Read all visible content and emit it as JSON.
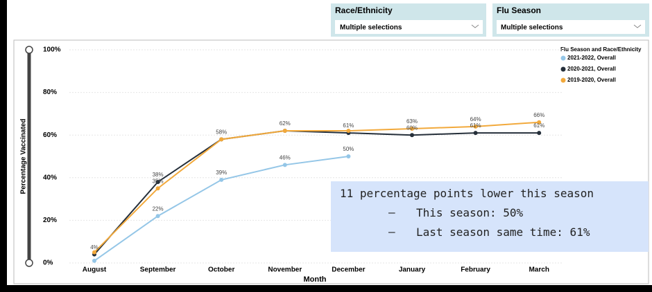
{
  "filters": [
    {
      "label": "Race/Ethnicity",
      "value": "Multiple selections"
    },
    {
      "label": "Flu Season",
      "value": "Multiple selections"
    }
  ],
  "chart_data": {
    "type": "line",
    "xlabel": "Month",
    "ylabel": "Percentage Vaccinated",
    "legend_title": "Flu Season and Race/Ethnicity",
    "legend": "top-right",
    "grid": true,
    "categories": [
      "August",
      "September",
      "October",
      "November",
      "December",
      "January",
      "February",
      "March"
    ],
    "ylim": [
      0,
      100
    ],
    "yticks": [
      {
        "value": 0,
        "label": "0%"
      },
      {
        "value": 20,
        "label": "20%"
      },
      {
        "value": 40,
        "label": "40%"
      },
      {
        "value": 60,
        "label": "60%"
      },
      {
        "value": 80,
        "label": "80%"
      },
      {
        "value": 100,
        "label": "100%"
      }
    ],
    "series": [
      {
        "name": "2021-2022, Overall",
        "color": "#94c6e7",
        "values": [
          1,
          22,
          39,
          46,
          50,
          null,
          null,
          null
        ],
        "value_labels": [
          null,
          "22%",
          "39%",
          "46%",
          "50%",
          null,
          null,
          null
        ]
      },
      {
        "name": "2020-2021, Overall",
        "color": "#252f3a",
        "values": [
          4,
          38,
          58,
          62,
          61,
          60,
          61,
          61
        ],
        "value_labels": [
          "4%",
          "38%",
          null,
          null,
          "61%",
          "60%",
          "61%",
          "61%"
        ]
      },
      {
        "name": "2019-2020, Overall",
        "color": "#f2a93b",
        "values": [
          5,
          35,
          58,
          62,
          62,
          63,
          64,
          66
        ],
        "value_labels": [
          null,
          "35%",
          "58%",
          "62%",
          null,
          "63%",
          "64%",
          "66%"
        ]
      }
    ],
    "annotation": [
      "11 percentage points lower this season",
      "This season: 50%",
      "Last season same time: 61%"
    ]
  }
}
